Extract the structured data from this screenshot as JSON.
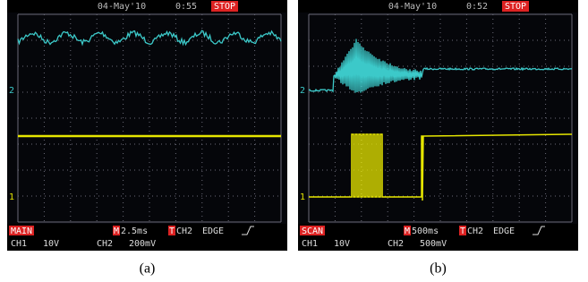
{
  "panels": [
    {
      "caption": "(a)",
      "date": "04-May'10",
      "time": "0:55",
      "status": "STOP",
      "mode": "MAIN",
      "timebase_prefix": "M",
      "timebase": "2.5ms",
      "trigger_prefix": "T",
      "trigger_source": "CH2",
      "trigger_type": "EDGE",
      "ch1_label": "CH1",
      "ch1_scale": "10V",
      "ch2_label": "CH2",
      "ch2_scale": "200mV",
      "ch2_marker": "2",
      "ch1_marker": "1"
    },
    {
      "caption": "(b)",
      "date": "04-May'10",
      "time": "0:52",
      "status": "STOP",
      "mode": "SCAN",
      "timebase_prefix": "M",
      "timebase": "500ms",
      "trigger_prefix": "T",
      "trigger_source": "CH2",
      "trigger_type": "EDGE",
      "ch1_label": "CH1",
      "ch1_scale": "10V",
      "ch2_label": "CH2",
      "ch2_scale": "500mV",
      "ch2_marker": "2",
      "ch1_marker": "1"
    }
  ]
}
